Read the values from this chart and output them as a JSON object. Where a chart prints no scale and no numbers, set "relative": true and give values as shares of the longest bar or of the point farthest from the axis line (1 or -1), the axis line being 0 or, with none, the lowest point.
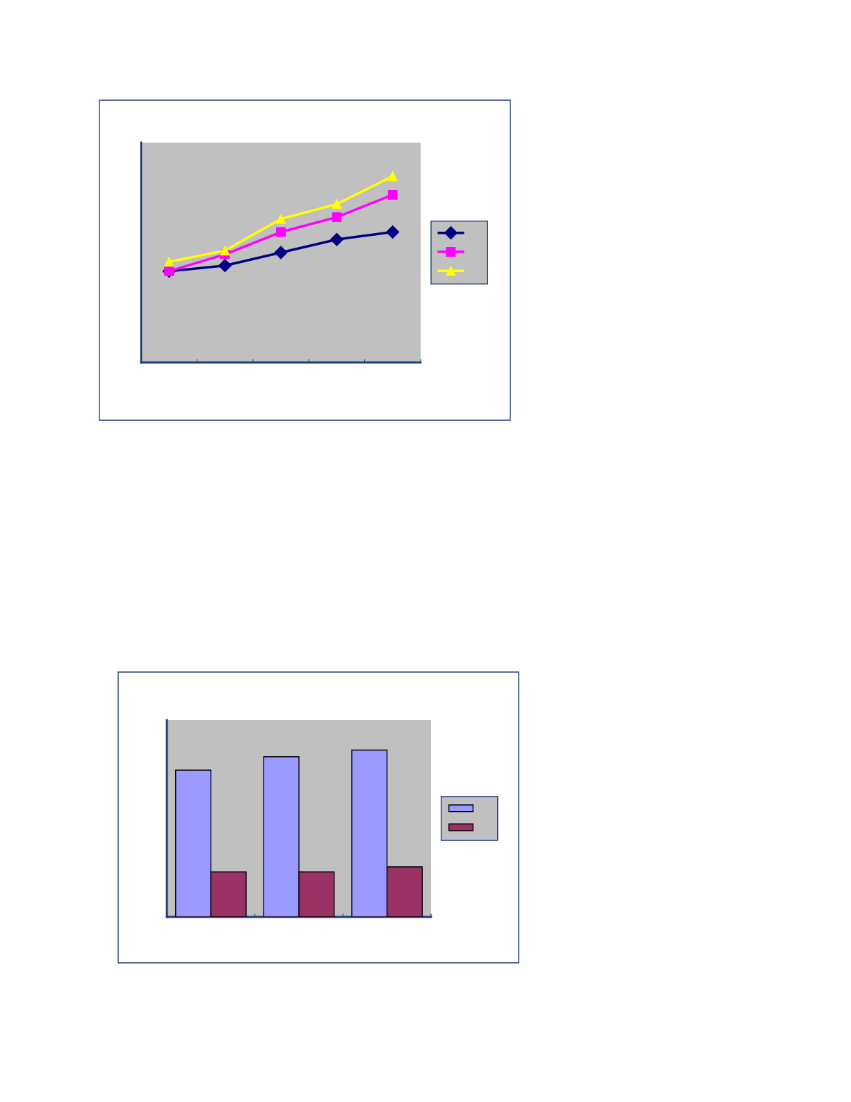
{
  "chart_data": [
    {
      "type": "line",
      "relative": true,
      "categories": [
        null,
        null,
        null,
        null,
        null
      ],
      "line_style": "solid",
      "series": [
        {
          "color": "#000080",
          "marker": "diamond",
          "values": [
            0.49,
            0.52,
            0.59,
            0.66,
            0.7
          ]
        },
        {
          "color": "#ff00ff",
          "marker": "square",
          "values": [
            0.49,
            0.58,
            0.7,
            0.78,
            0.9
          ]
        },
        {
          "color": "#ffff00",
          "marker": "triangle",
          "values": [
            0.54,
            0.6,
            0.77,
            0.85,
            1.0
          ]
        }
      ]
    },
    {
      "type": "bar",
      "relative": true,
      "categories": [
        null,
        null,
        null
      ],
      "series": [
        {
          "color": "#9999ff",
          "values": [
            0.88,
            0.96,
            1.0
          ]
        },
        {
          "color": "#993366",
          "values": [
            0.27,
            0.27,
            0.3
          ]
        }
      ]
    }
  ]
}
